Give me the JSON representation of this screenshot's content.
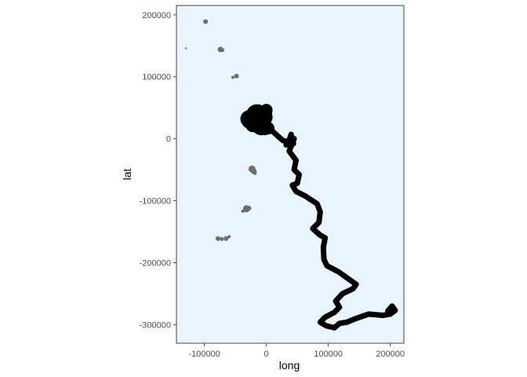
{
  "chart_data": {
    "type": "scatter",
    "title": "",
    "xlabel": "long",
    "ylabel": "lat",
    "xlim": [
      -145000,
      222000
    ],
    "ylim": [
      -330000,
      215000
    ],
    "x_ticks": [
      -100000,
      0,
      100000,
      200000
    ],
    "x_tick_labels": [
      "-100000",
      "0",
      "100000",
      "200000"
    ],
    "y_ticks": [
      -300000,
      -200000,
      -100000,
      0,
      100000,
      200000
    ],
    "y_tick_labels": [
      "-300000",
      "-200000",
      "-100000",
      "0",
      "100000",
      "200000"
    ],
    "grid": false,
    "legend": "none",
    "panel_background": "#eaf4fe",
    "panel_border": "#333333",
    "series": [
      {
        "kind": "islands",
        "color": "#6e6e6e",
        "points": [
          [
            -98000,
            189000,
            3
          ],
          [
            -130000,
            146000,
            1.2
          ],
          [
            -74000,
            144000,
            3.5
          ],
          [
            -71000,
            143000,
            2.5
          ],
          [
            -48000,
            101000,
            3
          ],
          [
            -54000,
            99000,
            2
          ],
          [
            -23000,
            -49000,
            4.5
          ],
          [
            -20000,
            -53000,
            3.5
          ],
          [
            -18000,
            -56000,
            2
          ],
          [
            -32000,
            -113000,
            4.5
          ],
          [
            -28000,
            -112000,
            3
          ],
          [
            -38000,
            -117000,
            2
          ],
          [
            -78000,
            -161000,
            3
          ],
          [
            -72000,
            -162000,
            2.5
          ],
          [
            -65000,
            -161000,
            3
          ],
          [
            -60000,
            -158000,
            2
          ]
        ]
      },
      {
        "kind": "track",
        "color": "#000000",
        "path": [
          [
            -37000,
            30000
          ],
          [
            -20000,
            32000
          ],
          [
            -10000,
            40000
          ],
          [
            -22000,
            25000
          ],
          [
            -5000,
            48000
          ],
          [
            0,
            30000
          ],
          [
            -18000,
            15000
          ],
          [
            5000,
            20000
          ],
          [
            -12000,
            28000
          ],
          [
            -2000,
            10000
          ],
          [
            8000,
            14000
          ],
          [
            20000,
            3000
          ],
          [
            27000,
            -3000
          ],
          [
            36000,
            -5000
          ],
          [
            40000,
            7000
          ],
          [
            44000,
            -8000
          ],
          [
            32000,
            -10000
          ],
          [
            45000,
            0
          ],
          [
            37000,
            -20000
          ],
          [
            48000,
            -35000
          ],
          [
            45000,
            -50000
          ],
          [
            53000,
            -58000
          ],
          [
            50000,
            -72000
          ],
          [
            42000,
            -75000
          ],
          [
            48000,
            -85000
          ],
          [
            62000,
            -92000
          ],
          [
            82000,
            -105000
          ],
          [
            87000,
            -118000
          ],
          [
            85000,
            -135000
          ],
          [
            75000,
            -145000
          ],
          [
            86000,
            -155000
          ],
          [
            95000,
            -160000
          ],
          [
            92000,
            -175000
          ],
          [
            93000,
            -195000
          ],
          [
            98000,
            -205000
          ],
          [
            117000,
            -215000
          ],
          [
            135000,
            -228000
          ],
          [
            145000,
            -235000
          ],
          [
            140000,
            -242000
          ],
          [
            123000,
            -250000
          ],
          [
            112000,
            -262000
          ],
          [
            118000,
            -272000
          ],
          [
            110000,
            -280000
          ],
          [
            95000,
            -288000
          ],
          [
            87000,
            -296000
          ],
          [
            97000,
            -302000
          ],
          [
            110000,
            -305000
          ],
          [
            118000,
            -298000
          ],
          [
            130000,
            -296000
          ],
          [
            145000,
            -290000
          ],
          [
            165000,
            -283000
          ],
          [
            188000,
            -285000
          ],
          [
            200000,
            -283000
          ],
          [
            208000,
            -277000
          ],
          [
            203000,
            -270000
          ],
          [
            196000,
            -278000
          ]
        ],
        "blob": [
          [
            -28000,
            32000,
            11
          ],
          [
            -15000,
            38000,
            14
          ],
          [
            -5000,
            35000,
            12
          ],
          [
            -8000,
            22000,
            13
          ],
          [
            -22000,
            22000,
            9
          ],
          [
            0,
            46000,
            8
          ],
          [
            -30000,
            26000,
            7
          ],
          [
            3000,
            17000,
            8
          ]
        ]
      }
    ]
  }
}
